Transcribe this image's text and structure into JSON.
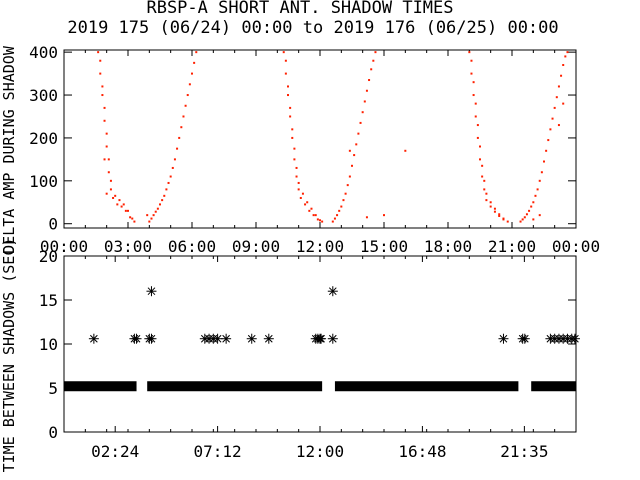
{
  "title": "RBSP-A SHORT ANT. SHADOW TIMES",
  "subtitle": "2019 175 (06/24) 00:00 to 2019 176 (06/25) 00:00",
  "colors": {
    "background": "#ffffff",
    "axes": "#000000",
    "top_series": "#ff2000",
    "bottom_series": "#000000"
  },
  "chart_data": [
    {
      "type": "scatter",
      "name": "top-panel",
      "ylabel": "DELTA AMP DURING SHADOW",
      "xlim": [
        0,
        24
      ],
      "ylim": [
        -10,
        405
      ],
      "x_tick_labels": [
        "00:00",
        "03:00",
        "06:00",
        "09:00",
        "12:00",
        "15:00",
        "18:00",
        "21:00",
        "00:00"
      ],
      "x_tick_values": [
        0,
        3,
        6,
        9,
        12,
        15,
        18,
        21,
        24
      ],
      "y_tick_labels": [
        "0",
        "100",
        "200",
        "300",
        "400"
      ],
      "y_tick_values": [
        0,
        100,
        200,
        300,
        400
      ],
      "series": [
        {
          "color": "#ff2000",
          "points": [
            [
              1.6,
              400
            ],
            [
              1.7,
              350
            ],
            [
              1.8,
              300
            ],
            [
              1.9,
              240
            ],
            [
              2.0,
              180
            ],
            [
              2.1,
              120
            ],
            [
              2.2,
              80
            ],
            [
              2.3,
              60
            ],
            [
              2.5,
              45
            ],
            [
              2.7,
              40
            ],
            [
              2.9,
              30
            ],
            [
              3.1,
              15
            ],
            [
              3.3,
              5
            ],
            [
              1.7,
              380
            ],
            [
              1.8,
              320
            ],
            [
              1.9,
              270
            ],
            [
              2.0,
              210
            ],
            [
              2.1,
              150
            ],
            [
              2.2,
              100
            ],
            [
              2.4,
              65
            ],
            [
              2.6,
              55
            ],
            [
              2.8,
              45
            ],
            [
              3.0,
              30
            ],
            [
              3.2,
              12
            ],
            [
              4.0,
              5
            ],
            [
              4.2,
              20
            ],
            [
              4.4,
              35
            ],
            [
              4.6,
              55
            ],
            [
              4.8,
              80
            ],
            [
              5.0,
              110
            ],
            [
              5.2,
              150
            ],
            [
              5.4,
              200
            ],
            [
              5.6,
              250
            ],
            [
              5.8,
              300
            ],
            [
              6.0,
              350
            ],
            [
              6.2,
              400
            ],
            [
              4.1,
              12
            ],
            [
              4.3,
              28
            ],
            [
              4.5,
              45
            ],
            [
              4.7,
              65
            ],
            [
              4.9,
              95
            ],
            [
              5.1,
              130
            ],
            [
              5.3,
              175
            ],
            [
              5.5,
              225
            ],
            [
              5.7,
              275
            ],
            [
              5.9,
              325
            ],
            [
              6.1,
              375
            ],
            [
              1.9,
              150
            ],
            [
              2.0,
              70
            ],
            [
              3.9,
              20
            ],
            [
              10.3,
              400
            ],
            [
              10.4,
              350
            ],
            [
              10.5,
              300
            ],
            [
              10.6,
              250
            ],
            [
              10.7,
              200
            ],
            [
              10.8,
              150
            ],
            [
              10.9,
              110
            ],
            [
              11.0,
              80
            ],
            [
              11.1,
              60
            ],
            [
              11.3,
              45
            ],
            [
              11.5,
              30
            ],
            [
              11.7,
              20
            ],
            [
              11.9,
              10
            ],
            [
              12.1,
              5
            ],
            [
              10.4,
              380
            ],
            [
              10.5,
              320
            ],
            [
              10.6,
              270
            ],
            [
              10.7,
              220
            ],
            [
              10.8,
              175
            ],
            [
              10.9,
              130
            ],
            [
              11.0,
              95
            ],
            [
              11.2,
              70
            ],
            [
              11.4,
              50
            ],
            [
              11.6,
              35
            ],
            [
              11.8,
              20
            ],
            [
              12.0,
              8
            ],
            [
              12.6,
              5
            ],
            [
              12.8,
              20
            ],
            [
              13.0,
              40
            ],
            [
              13.2,
              70
            ],
            [
              13.4,
              110
            ],
            [
              13.6,
              160
            ],
            [
              13.8,
              210
            ],
            [
              14.0,
              260
            ],
            [
              14.2,
              310
            ],
            [
              14.4,
              360
            ],
            [
              14.6,
              400
            ],
            [
              12.7,
              12
            ],
            [
              12.9,
              30
            ],
            [
              13.1,
              55
            ],
            [
              13.3,
              90
            ],
            [
              13.5,
              135
            ],
            [
              13.7,
              185
            ],
            [
              13.9,
              235
            ],
            [
              14.1,
              285
            ],
            [
              14.3,
              335
            ],
            [
              14.5,
              380
            ],
            [
              13.4,
              170
            ],
            [
              15.0,
              20
            ],
            [
              14.2,
              15
            ],
            [
              16.0,
              170
            ],
            [
              19.0,
              400
            ],
            [
              19.1,
              350
            ],
            [
              19.2,
              300
            ],
            [
              19.3,
              250
            ],
            [
              19.4,
              200
            ],
            [
              19.5,
              150
            ],
            [
              19.6,
              110
            ],
            [
              19.7,
              80
            ],
            [
              19.8,
              55
            ],
            [
              20.0,
              40
            ],
            [
              20.2,
              28
            ],
            [
              20.4,
              18
            ],
            [
              20.6,
              10
            ],
            [
              20.8,
              5
            ],
            [
              19.1,
              380
            ],
            [
              19.2,
              330
            ],
            [
              19.3,
              280
            ],
            [
              19.4,
              230
            ],
            [
              19.5,
              180
            ],
            [
              19.6,
              135
            ],
            [
              19.7,
              100
            ],
            [
              19.8,
              70
            ],
            [
              20.0,
              50
            ],
            [
              20.2,
              35
            ],
            [
              20.4,
              22
            ],
            [
              20.6,
              12
            ],
            [
              21.4,
              5
            ],
            [
              21.6,
              15
            ],
            [
              21.8,
              30
            ],
            [
              22.0,
              50
            ],
            [
              22.2,
              80
            ],
            [
              22.4,
              120
            ],
            [
              22.6,
              170
            ],
            [
              22.8,
              220
            ],
            [
              23.0,
              270
            ],
            [
              23.2,
              320
            ],
            [
              23.4,
              370
            ],
            [
              23.6,
              400
            ],
            [
              21.5,
              10
            ],
            [
              21.7,
              22
            ],
            [
              21.9,
              40
            ],
            [
              22.1,
              65
            ],
            [
              22.3,
              100
            ],
            [
              22.5,
              145
            ],
            [
              22.7,
              195
            ],
            [
              22.9,
              245
            ],
            [
              23.1,
              295
            ],
            [
              23.3,
              345
            ],
            [
              23.5,
              390
            ],
            [
              22.0,
              10
            ],
            [
              22.3,
              20
            ],
            [
              23.2,
              230
            ],
            [
              23.4,
              280
            ]
          ]
        }
      ]
    },
    {
      "type": "scatter",
      "name": "bottom-panel",
      "ylabel": "TIME BETWEEN SHADOWS (SEC)",
      "xlim": [
        0,
        24
      ],
      "ylim": [
        0,
        20
      ],
      "x_tick_labels": [
        "02:24",
        "07:12",
        "12:00",
        "16:48",
        "21:35"
      ],
      "x_tick_values": [
        2.4,
        7.2,
        12.0,
        16.8,
        21.58
      ],
      "y_tick_labels": [
        "0",
        "5",
        "10",
        "15",
        "20"
      ],
      "y_tick_values": [
        0,
        5,
        10,
        15,
        20
      ],
      "marker": "*",
      "series": [
        {
          "color": "#000000",
          "baseline": {
            "y": 5.2,
            "x_ranges": [
              [
                0,
                3.4
              ],
              [
                3.9,
                12.1
              ],
              [
                12.7,
                21.3
              ],
              [
                21.9,
                24
              ]
            ]
          },
          "points": [
            [
              1.4,
              10.6
            ],
            [
              3.3,
              10.6
            ],
            [
              3.4,
              10.6
            ],
            [
              4.0,
              10.6
            ],
            [
              4.1,
              10.6
            ],
            [
              4.1,
              16.0
            ],
            [
              6.6,
              10.6
            ],
            [
              6.8,
              10.6
            ],
            [
              7.0,
              10.6
            ],
            [
              7.2,
              10.6
            ],
            [
              7.6,
              10.6
            ],
            [
              8.8,
              10.6
            ],
            [
              9.6,
              10.6
            ],
            [
              11.8,
              10.6
            ],
            [
              11.9,
              10.6
            ],
            [
              12.0,
              10.6
            ],
            [
              12.05,
              10.6
            ],
            [
              12.6,
              10.6
            ],
            [
              12.6,
              16.0
            ],
            [
              20.6,
              10.6
            ],
            [
              21.5,
              10.6
            ],
            [
              21.6,
              10.6
            ],
            [
              22.8,
              10.6
            ],
            [
              23.0,
              10.6
            ],
            [
              23.2,
              10.6
            ],
            [
              23.4,
              10.6
            ],
            [
              23.6,
              10.6
            ],
            [
              23.8,
              10.6
            ],
            [
              23.95,
              10.6
            ]
          ]
        }
      ]
    }
  ]
}
